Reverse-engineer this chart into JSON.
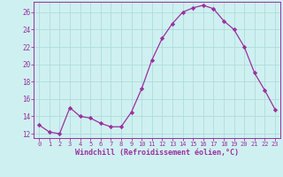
{
  "x": [
    0,
    1,
    2,
    3,
    4,
    5,
    6,
    7,
    8,
    9,
    10,
    11,
    12,
    13,
    14,
    15,
    16,
    17,
    18,
    19,
    20,
    21,
    22,
    23
  ],
  "y": [
    13.0,
    12.2,
    12.0,
    15.0,
    14.0,
    13.8,
    13.2,
    12.8,
    12.8,
    14.5,
    17.2,
    20.5,
    23.0,
    24.7,
    26.0,
    26.5,
    26.8,
    26.4,
    25.0,
    24.0,
    22.0,
    19.0,
    17.0,
    14.8
  ],
  "line_color": "#9b309f",
  "marker": "D",
  "marker_size": 2.2,
  "bg_color": "#cff0f0",
  "grid_color": "#aedcdc",
  "ylabel_ticks": [
    12,
    14,
    16,
    18,
    20,
    22,
    24,
    26
  ],
  "ylim": [
    11.5,
    27.2
  ],
  "xlim": [
    -0.5,
    23.5
  ],
  "xlabel": "Windchill (Refroidissement éolien,°C)",
  "xlabel_color": "#9b309f",
  "tick_color": "#9b309f",
  "axis_color": "#9b309f",
  "xtick_fontsize": 5.0,
  "ytick_fontsize": 5.5,
  "xlabel_fontsize": 6.0
}
